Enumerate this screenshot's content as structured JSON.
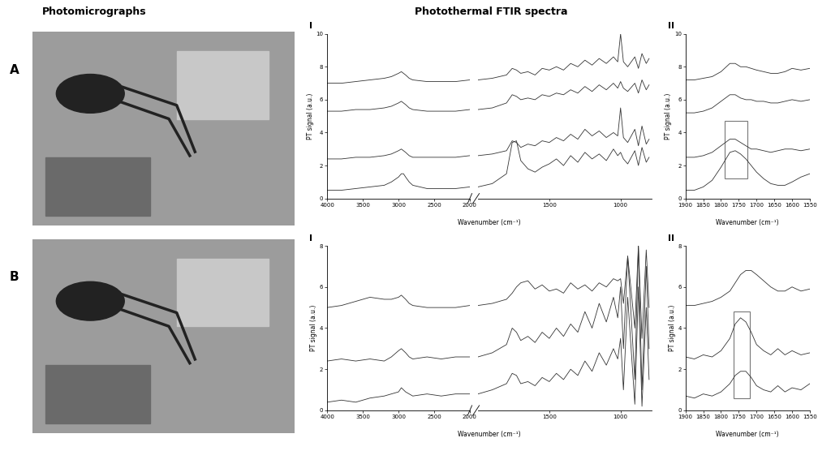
{
  "headings": [
    "Photomicrographs",
    "Photothermal FTIR spectra"
  ],
  "panels": [
    "A",
    "B"
  ],
  "chart_data": [
    {
      "type": "line",
      "panel": "A",
      "subpanel": "I",
      "x_label": "Wavenumber (cm⁻¹)",
      "y_label": "PT signal (a.u.)",
      "xlim": [
        4000,
        780
      ],
      "x_break": 2000,
      "xticks": [
        4000,
        3500,
        3000,
        2500,
        2000,
        1500,
        1000
      ],
      "ylim": [
        0,
        10
      ],
      "yticks": [
        0,
        2,
        4,
        6,
        8,
        10
      ],
      "x": [
        4000,
        3800,
        3600,
        3400,
        3200,
        3100,
        3000,
        2960,
        2930,
        2900,
        2850,
        2800,
        2600,
        2400,
        2200,
        2000,
        1900,
        1800,
        1760,
        1730,
        1700,
        1650,
        1600,
        1550,
        1500,
        1450,
        1400,
        1350,
        1300,
        1250,
        1200,
        1150,
        1100,
        1050,
        1020,
        1000,
        980,
        950,
        900,
        875,
        850,
        820,
        800
      ],
      "series": [
        {
          "color": "#333333",
          "values": [
            7.0,
            7.0,
            7.1,
            7.2,
            7.3,
            7.4,
            7.6,
            7.7,
            7.6,
            7.5,
            7.3,
            7.2,
            7.1,
            7.1,
            7.1,
            7.2,
            7.3,
            7.5,
            7.9,
            7.8,
            7.6,
            7.7,
            7.5,
            7.9,
            7.8,
            8.0,
            7.8,
            8.2,
            8.0,
            8.4,
            8.1,
            8.5,
            8.2,
            8.6,
            8.3,
            10.0,
            8.3,
            8.0,
            8.6,
            7.9,
            8.8,
            8.2,
            8.5
          ]
        },
        {
          "color": "#333333",
          "values": [
            5.3,
            5.3,
            5.4,
            5.4,
            5.5,
            5.6,
            5.8,
            5.9,
            5.8,
            5.7,
            5.5,
            5.4,
            5.3,
            5.3,
            5.3,
            5.4,
            5.5,
            5.8,
            6.3,
            6.2,
            6.0,
            6.1,
            6.0,
            6.3,
            6.2,
            6.4,
            6.3,
            6.6,
            6.4,
            6.8,
            6.5,
            6.9,
            6.6,
            7.0,
            6.7,
            7.1,
            6.7,
            6.5,
            7.0,
            6.4,
            7.2,
            6.6,
            6.9
          ]
        },
        {
          "color": "#333333",
          "values": [
            2.4,
            2.4,
            2.5,
            2.5,
            2.6,
            2.7,
            2.9,
            3.0,
            2.9,
            2.8,
            2.6,
            2.5,
            2.5,
            2.5,
            2.5,
            2.6,
            2.7,
            2.9,
            3.5,
            3.4,
            3.1,
            3.3,
            3.2,
            3.5,
            3.4,
            3.7,
            3.5,
            3.9,
            3.6,
            4.2,
            3.8,
            4.1,
            3.7,
            4.0,
            3.8,
            5.5,
            3.7,
            3.4,
            4.2,
            3.2,
            4.4,
            3.3,
            3.6
          ]
        },
        {
          "color": "#333333",
          "values": [
            0.5,
            0.5,
            0.6,
            0.7,
            0.8,
            1.0,
            1.3,
            1.5,
            1.5,
            1.3,
            1.0,
            0.8,
            0.6,
            0.6,
            0.6,
            0.7,
            0.9,
            1.5,
            3.4,
            3.5,
            2.3,
            1.8,
            1.6,
            1.9,
            2.1,
            2.4,
            2.0,
            2.6,
            2.2,
            2.8,
            2.4,
            2.7,
            2.3,
            3.0,
            2.6,
            2.8,
            2.4,
            2.1,
            2.9,
            2.0,
            3.1,
            2.2,
            2.5
          ]
        }
      ]
    },
    {
      "type": "line",
      "panel": "A",
      "subpanel": "II",
      "x_label": "Wavenumber (cm⁻¹)",
      "y_label": "PT signal (a.u.)",
      "xlim": [
        1900,
        1550
      ],
      "xticks": [
        1900,
        1850,
        1800,
        1750,
        1700,
        1650,
        1600,
        1550
      ],
      "ylim": [
        0,
        10
      ],
      "yticks": [
        0,
        2,
        4,
        6,
        8,
        10
      ],
      "highlights": [
        {
          "x": [
            1790,
            1725
          ],
          "y": [
            1.2,
            4.7
          ]
        }
      ],
      "x": [
        1900,
        1875,
        1850,
        1825,
        1800,
        1775,
        1760,
        1745,
        1730,
        1715,
        1700,
        1680,
        1660,
        1640,
        1620,
        1600,
        1575,
        1550
      ],
      "series": [
        {
          "color": "#333333",
          "values": [
            7.2,
            7.2,
            7.3,
            7.4,
            7.7,
            8.2,
            8.2,
            8.0,
            8.0,
            7.9,
            7.8,
            7.7,
            7.6,
            7.6,
            7.7,
            7.9,
            7.8,
            7.9
          ]
        },
        {
          "color": "#333333",
          "values": [
            5.2,
            5.2,
            5.3,
            5.5,
            5.9,
            6.3,
            6.3,
            6.1,
            6.0,
            6.0,
            5.9,
            5.9,
            5.8,
            5.8,
            5.9,
            6.0,
            5.9,
            6.0
          ]
        },
        {
          "color": "#333333",
          "values": [
            2.5,
            2.5,
            2.6,
            2.8,
            3.2,
            3.6,
            3.6,
            3.4,
            3.2,
            3.0,
            3.0,
            2.9,
            2.8,
            2.9,
            3.0,
            3.0,
            2.9,
            3.0
          ]
        },
        {
          "color": "#333333",
          "values": [
            0.5,
            0.5,
            0.7,
            1.1,
            1.9,
            2.8,
            2.9,
            2.7,
            2.4,
            2.0,
            1.6,
            1.2,
            0.9,
            0.8,
            0.8,
            1.0,
            1.3,
            1.5
          ]
        }
      ]
    },
    {
      "type": "line",
      "panel": "B",
      "subpanel": "I",
      "x_label": "Wavenumber (cm⁻¹)",
      "y_label": "PT signal (a.u.)",
      "xlim": [
        4000,
        780
      ],
      "x_break": 2000,
      "xticks": [
        4000,
        3500,
        3000,
        2500,
        2000,
        1500,
        1000
      ],
      "ylim": [
        0,
        8
      ],
      "yticks": [
        0,
        2,
        4,
        6,
        8
      ],
      "x": [
        4000,
        3800,
        3600,
        3400,
        3200,
        3100,
        3000,
        2960,
        2930,
        2900,
        2850,
        2800,
        2600,
        2400,
        2200,
        2000,
        1900,
        1800,
        1760,
        1730,
        1700,
        1650,
        1600,
        1550,
        1500,
        1450,
        1400,
        1350,
        1300,
        1250,
        1200,
        1150,
        1100,
        1050,
        1020,
        1000,
        980,
        950,
        900,
        875,
        850,
        820,
        800
      ],
      "series": [
        {
          "color": "#333333",
          "values": [
            5.0,
            5.1,
            5.3,
            5.5,
            5.4,
            5.4,
            5.5,
            5.6,
            5.5,
            5.4,
            5.2,
            5.1,
            5.0,
            5.0,
            5.0,
            5.1,
            5.2,
            5.4,
            5.7,
            6.0,
            6.2,
            6.3,
            5.9,
            6.1,
            5.8,
            5.9,
            5.7,
            6.2,
            5.9,
            6.1,
            5.8,
            6.2,
            6.0,
            6.4,
            6.3,
            6.4,
            5.2,
            7.5,
            4.0,
            8.0,
            3.5,
            7.8,
            5.0
          ]
        },
        {
          "color": "#333333",
          "values": [
            2.4,
            2.5,
            2.4,
            2.5,
            2.4,
            2.6,
            2.9,
            3.0,
            2.9,
            2.8,
            2.6,
            2.5,
            2.6,
            2.5,
            2.6,
            2.6,
            2.8,
            3.2,
            4.0,
            3.8,
            3.4,
            3.6,
            3.3,
            3.8,
            3.5,
            4.0,
            3.6,
            4.2,
            3.8,
            4.8,
            4.0,
            5.2,
            4.3,
            5.5,
            4.5,
            6.0,
            3.0,
            7.5,
            1.5,
            8.0,
            1.0,
            7.0,
            3.0
          ]
        },
        {
          "color": "#333333",
          "values": [
            0.4,
            0.5,
            0.4,
            0.6,
            0.7,
            0.8,
            0.9,
            1.1,
            1.0,
            0.9,
            0.8,
            0.7,
            0.8,
            0.7,
            0.8,
            0.8,
            1.0,
            1.3,
            1.8,
            1.7,
            1.3,
            1.4,
            1.2,
            1.6,
            1.4,
            1.8,
            1.5,
            2.0,
            1.7,
            2.4,
            1.9,
            2.8,
            2.2,
            3.0,
            2.5,
            3.5,
            1.0,
            5.5,
            0.3,
            6.0,
            0.2,
            5.0,
            1.5
          ]
        }
      ]
    },
    {
      "type": "line",
      "panel": "B",
      "subpanel": "II",
      "x_label": "Wavenumber (cm⁻¹)",
      "y_label": "PT signal (a.u.)",
      "xlim": [
        1900,
        1550
      ],
      "xticks": [
        1900,
        1850,
        1800,
        1750,
        1700,
        1650,
        1600,
        1550
      ],
      "ylim": [
        0,
        8
      ],
      "yticks": [
        0,
        2,
        4,
        6,
        8
      ],
      "highlights": [
        {
          "x": [
            1765,
            1720
          ],
          "y": [
            0.6,
            4.8
          ]
        }
      ],
      "x": [
        1900,
        1875,
        1850,
        1825,
        1800,
        1775,
        1760,
        1745,
        1730,
        1715,
        1700,
        1680,
        1660,
        1640,
        1620,
        1600,
        1575,
        1550
      ],
      "series": [
        {
          "color": "#333333",
          "values": [
            5.1,
            5.1,
            5.2,
            5.3,
            5.5,
            5.8,
            6.2,
            6.6,
            6.8,
            6.8,
            6.6,
            6.3,
            6.0,
            5.8,
            5.8,
            6.0,
            5.8,
            5.9
          ]
        },
        {
          "color": "#333333",
          "values": [
            2.6,
            2.5,
            2.7,
            2.6,
            2.9,
            3.5,
            4.2,
            4.5,
            4.3,
            3.8,
            3.2,
            2.9,
            2.7,
            3.0,
            2.7,
            2.9,
            2.7,
            2.8
          ]
        },
        {
          "color": "#333333",
          "values": [
            0.7,
            0.6,
            0.8,
            0.7,
            0.9,
            1.3,
            1.7,
            1.9,
            1.9,
            1.6,
            1.2,
            1.0,
            0.9,
            1.2,
            0.9,
            1.1,
            1.0,
            1.3
          ]
        }
      ]
    }
  ]
}
